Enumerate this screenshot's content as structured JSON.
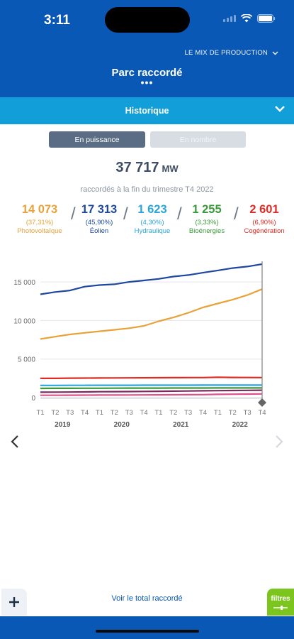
{
  "status": {
    "time": "3:11"
  },
  "header": {
    "mix_link": "LE MIX DE PRODUCTION",
    "title": "Parc raccordé",
    "dots": "•••"
  },
  "section": {
    "title": "Historique"
  },
  "toggle": {
    "active": "En puissance",
    "inactive": "En nombre"
  },
  "summary": {
    "total": "37 717",
    "unit": "MW",
    "subtitle": "raccordés à la fin du trimestre T4 2022"
  },
  "kpis": [
    {
      "value": "14 073",
      "pct": "(37,31%)",
      "name": "Photovoltaïque",
      "color": "#e8a23a"
    },
    {
      "value": "17 313",
      "pct": "(45,90%)",
      "name": "Éolien",
      "color": "#1e47a0"
    },
    {
      "value": "1 623",
      "pct": "(4,30%)",
      "name": "Hydraulique",
      "color": "#28a6db"
    },
    {
      "value": "1 255",
      "pct": "(3,33%)",
      "name": "Bioénergies",
      "color": "#3a9a3a"
    },
    {
      "value": "2 601",
      "pct": "(6,90%)",
      "name": "Cogénération",
      "color": "#e02a22"
    }
  ],
  "chart_data": {
    "type": "line",
    "x": [
      "T1",
      "T2",
      "T3",
      "T4",
      "T1",
      "T2",
      "T3",
      "T4",
      "T1",
      "T2",
      "T3",
      "T4",
      "T1",
      "T2",
      "T3",
      "T4"
    ],
    "years": [
      "2019",
      "2020",
      "2021",
      "2022"
    ],
    "y_ticks": [
      "0",
      "5 000",
      "10 000",
      "15 000"
    ],
    "ylim": [
      0,
      17500
    ],
    "series": [
      {
        "name": "Éolien",
        "color": "#1e47a0",
        "values": [
          13400,
          13700,
          13900,
          14400,
          14600,
          14700,
          15000,
          15200,
          15400,
          15700,
          15900,
          16200,
          16500,
          16800,
          17000,
          17313
        ]
      },
      {
        "name": "Photovoltaïque",
        "color": "#e8a23a",
        "values": [
          7600,
          7900,
          8200,
          8400,
          8600,
          8800,
          9000,
          9300,
          9900,
          10400,
          11000,
          11700,
          12200,
          12700,
          13300,
          14073
        ]
      },
      {
        "name": "Cogénération",
        "color": "#e02a22",
        "values": [
          2500,
          2500,
          2520,
          2530,
          2540,
          2550,
          2560,
          2570,
          2580,
          2590,
          2595,
          2600,
          2640,
          2620,
          2605,
          2601
        ]
      },
      {
        "name": "Hydraulique",
        "color": "#28a6db",
        "values": [
          1580,
          1585,
          1590,
          1595,
          1600,
          1600,
          1605,
          1610,
          1610,
          1612,
          1615,
          1617,
          1618,
          1620,
          1622,
          1623
        ]
      },
      {
        "name": "Bioénergies",
        "color": "#3a9a3a",
        "values": [
          1200,
          1205,
          1210,
          1215,
          1220,
          1225,
          1230,
          1235,
          1238,
          1240,
          1243,
          1246,
          1249,
          1251,
          1253,
          1255
        ]
      },
      {
        "name": "",
        "color": "#7a2a5e",
        "values": [
          700,
          710,
          720,
          740,
          760,
          770,
          780,
          800,
          820,
          840,
          860,
          880,
          900,
          920,
          940,
          960
        ]
      },
      {
        "name": "",
        "color": "#e0508a",
        "values": [
          300,
          300,
          310,
          320,
          330,
          330,
          340,
          350,
          360,
          370,
          380,
          390,
          420,
          440,
          460,
          480
        ]
      }
    ]
  },
  "footer": {
    "total_link": "Voir le total raccordé",
    "filters": "filtres"
  }
}
